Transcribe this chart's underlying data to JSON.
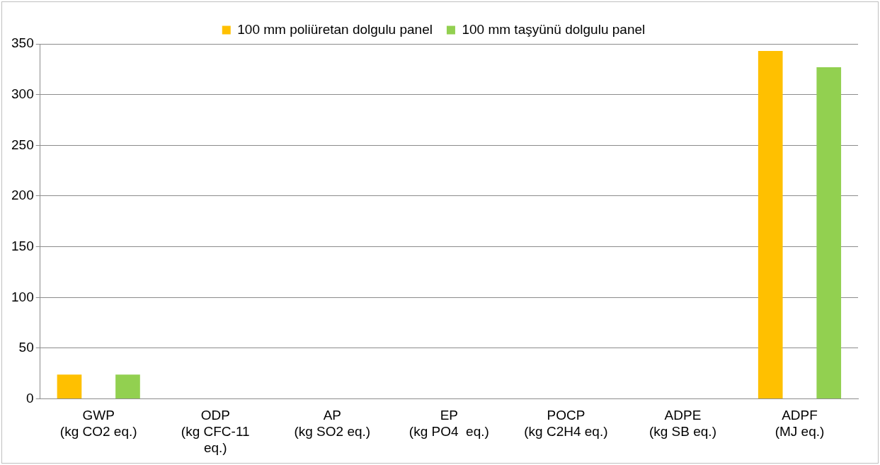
{
  "chart_data": {
    "type": "bar",
    "categories": [
      "GWP\n(kg CO2 eq.)",
      "ODP\n(kg CFC-11 eq.)",
      "AP\n(kg SO2 eq.)",
      "EP\n(kg PO4  eq.)",
      "POCP\n(kg C2H4 eq.)",
      "ADPE\n(kg SB eq.)",
      "ADPF\n(MJ eq.)"
    ],
    "series": [
      {
        "name": "100 mm poliüretan dolgulu panel",
        "color": "#ffc000",
        "values": [
          24,
          0,
          0,
          0,
          0,
          0,
          343
        ]
      },
      {
        "name": "100 mm taşyünü dolgulu panel",
        "color": "#92d050",
        "values": [
          24,
          0,
          0,
          0,
          0,
          0,
          327
        ]
      }
    ],
    "ylim": [
      0,
      350
    ],
    "yticks": [
      0,
      50,
      100,
      150,
      200,
      250,
      300,
      350
    ],
    "grid": "y",
    "legend": "top"
  }
}
